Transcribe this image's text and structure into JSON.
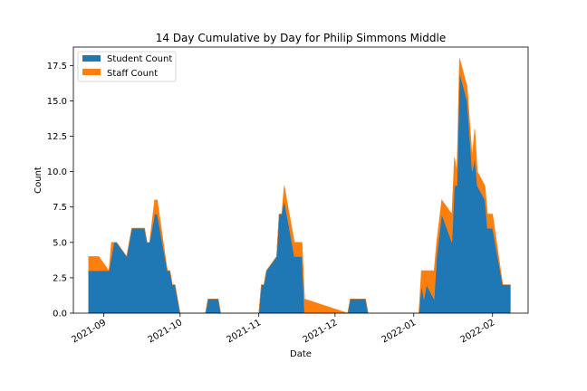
{
  "chart_data": {
    "type": "area",
    "stacked": true,
    "title": "14 Day Cumulative by Day for Philip Simmons Middle",
    "xlabel": "Date",
    "ylabel": "Count",
    "x_type": "date",
    "xlim": [
      "2021-08-20",
      "2022-02-15"
    ],
    "ylim": [
      0,
      18.8
    ],
    "yticks": [
      0.0,
      2.5,
      5.0,
      7.5,
      10.0,
      12.5,
      15.0,
      17.5
    ],
    "ytick_labels": [
      "0.0",
      "2.5",
      "5.0",
      "7.5",
      "10.0",
      "12.5",
      "15.0",
      "17.5"
    ],
    "xticks": [
      "2021-09-01",
      "2021-10-01",
      "2021-11-01",
      "2021-12-01",
      "2022-01-01",
      "2022-02-01"
    ],
    "xtick_labels": [
      "2021-09",
      "2021-10",
      "2021-11",
      "2021-12",
      "2022-01",
      "2022-02"
    ],
    "legend_position": "top-left",
    "grid": false,
    "colors": {
      "student": "#1f77b4",
      "staff": "#ff7f0e"
    },
    "series": [
      {
        "name": "Student Count",
        "points": [
          [
            "2021-08-26",
            3
          ],
          [
            "2021-08-30",
            3
          ],
          [
            "2021-09-03",
            3
          ],
          [
            "2021-09-04",
            4
          ],
          [
            "2021-09-05",
            5
          ],
          [
            "2021-09-06",
            5
          ],
          [
            "2021-09-10",
            4
          ],
          [
            "2021-09-12",
            6
          ],
          [
            "2021-09-13",
            6
          ],
          [
            "2021-09-17",
            6
          ],
          [
            "2021-09-18",
            5
          ],
          [
            "2021-09-19",
            5
          ],
          [
            "2021-09-21",
            7
          ],
          [
            "2021-09-22",
            7
          ],
          [
            "2021-09-26",
            3
          ],
          [
            "2021-09-27",
            3
          ],
          [
            "2021-09-28",
            2
          ],
          [
            "2021-09-29",
            2
          ],
          [
            "2021-10-01",
            0
          ],
          [
            "2021-10-11",
            0
          ],
          [
            "2021-10-12",
            1
          ],
          [
            "2021-10-16",
            1
          ],
          [
            "2021-10-17",
            0
          ],
          [
            "2021-11-01",
            0
          ],
          [
            "2021-11-02",
            2
          ],
          [
            "2021-11-03",
            2
          ],
          [
            "2021-11-04",
            3
          ],
          [
            "2021-11-08",
            4
          ],
          [
            "2021-11-09",
            7
          ],
          [
            "2021-11-10",
            7
          ],
          [
            "2021-11-11",
            8
          ],
          [
            "2021-11-15",
            4
          ],
          [
            "2021-11-18",
            4
          ],
          [
            "2021-11-19",
            0
          ],
          [
            "2021-12-06",
            0
          ],
          [
            "2021-12-07",
            1
          ],
          [
            "2021-12-13",
            1
          ],
          [
            "2021-12-14",
            0
          ],
          [
            "2022-01-03",
            0
          ],
          [
            "2022-01-04",
            2
          ],
          [
            "2022-01-05",
            1
          ],
          [
            "2022-01-06",
            2
          ],
          [
            "2022-01-09",
            1
          ],
          [
            "2022-01-10",
            4
          ],
          [
            "2022-01-12",
            7
          ],
          [
            "2022-01-16",
            5
          ],
          [
            "2022-01-17",
            9
          ],
          [
            "2022-01-18",
            9
          ],
          [
            "2022-01-19",
            17
          ],
          [
            "2022-01-22",
            15
          ],
          [
            "2022-01-24",
            10
          ],
          [
            "2022-01-25",
            11
          ],
          [
            "2022-01-26",
            9
          ],
          [
            "2022-01-29",
            8
          ],
          [
            "2022-01-30",
            6
          ],
          [
            "2022-02-01",
            6
          ],
          [
            "2022-02-05",
            2
          ],
          [
            "2022-02-08",
            2
          ]
        ]
      },
      {
        "name": "Staff Count",
        "points": [
          [
            "2021-08-26",
            1
          ],
          [
            "2021-08-30",
            1
          ],
          [
            "2021-09-03",
            0
          ],
          [
            "2021-09-04",
            1
          ],
          [
            "2021-09-05",
            0
          ],
          [
            "2021-09-06",
            0
          ],
          [
            "2021-09-10",
            0
          ],
          [
            "2021-09-12",
            0
          ],
          [
            "2021-09-13",
            0
          ],
          [
            "2021-09-17",
            0
          ],
          [
            "2021-09-18",
            0
          ],
          [
            "2021-09-19",
            0
          ],
          [
            "2021-09-21",
            1
          ],
          [
            "2021-09-22",
            1
          ],
          [
            "2021-09-26",
            0
          ],
          [
            "2021-09-27",
            0
          ],
          [
            "2021-09-28",
            0
          ],
          [
            "2021-09-29",
            0
          ],
          [
            "2021-10-01",
            0
          ],
          [
            "2021-10-11",
            0
          ],
          [
            "2021-10-12",
            0
          ],
          [
            "2021-10-16",
            0
          ],
          [
            "2021-10-17",
            0
          ],
          [
            "2021-11-01",
            0
          ],
          [
            "2021-11-02",
            0
          ],
          [
            "2021-11-03",
            0
          ],
          [
            "2021-11-04",
            0
          ],
          [
            "2021-11-08",
            0
          ],
          [
            "2021-11-09",
            0
          ],
          [
            "2021-11-10",
            0
          ],
          [
            "2021-11-11",
            1
          ],
          [
            "2021-11-15",
            1
          ],
          [
            "2021-11-18",
            1
          ],
          [
            "2021-11-19",
            1
          ],
          [
            "2021-12-06",
            0
          ],
          [
            "2021-12-07",
            0
          ],
          [
            "2021-12-13",
            0
          ],
          [
            "2021-12-14",
            0
          ],
          [
            "2022-01-03",
            0
          ],
          [
            "2022-01-04",
            1
          ],
          [
            "2022-01-05",
            2
          ],
          [
            "2022-01-06",
            1
          ],
          [
            "2022-01-09",
            2
          ],
          [
            "2022-01-10",
            1
          ],
          [
            "2022-01-12",
            1
          ],
          [
            "2022-01-16",
            2
          ],
          [
            "2022-01-17",
            2
          ],
          [
            "2022-01-18",
            1
          ],
          [
            "2022-01-19",
            1
          ],
          [
            "2022-01-22",
            1
          ],
          [
            "2022-01-24",
            1
          ],
          [
            "2022-01-25",
            2
          ],
          [
            "2022-01-26",
            1
          ],
          [
            "2022-01-29",
            1
          ],
          [
            "2022-01-30",
            1
          ],
          [
            "2022-02-01",
            1
          ],
          [
            "2022-02-05",
            0
          ],
          [
            "2022-02-08",
            0
          ]
        ]
      }
    ]
  }
}
